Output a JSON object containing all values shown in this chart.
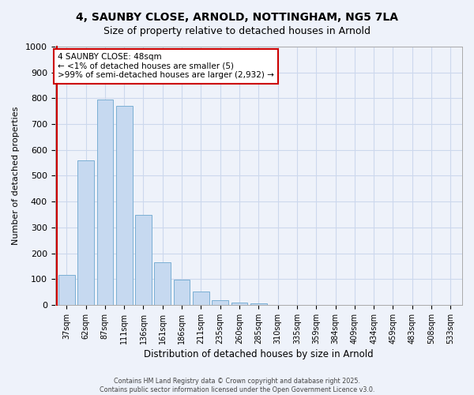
{
  "title": "4, SAUNBY CLOSE, ARNOLD, NOTTINGHAM, NG5 7LA",
  "subtitle": "Size of property relative to detached houses in Arnold",
  "xlabel": "Distribution of detached houses by size in Arnold",
  "ylabel": "Number of detached properties",
  "bar_labels": [
    "37sqm",
    "62sqm",
    "87sqm",
    "111sqm",
    "136sqm",
    "161sqm",
    "186sqm",
    "211sqm",
    "235sqm",
    "260sqm",
    "285sqm",
    "310sqm",
    "335sqm",
    "359sqm",
    "384sqm",
    "409sqm",
    "434sqm",
    "459sqm",
    "483sqm",
    "508sqm",
    "533sqm"
  ],
  "bar_values": [
    115,
    560,
    795,
    770,
    350,
    165,
    98,
    52,
    18,
    10,
    5,
    0,
    0,
    0,
    0,
    0,
    0,
    0,
    0,
    0,
    0
  ],
  "bar_color": "#c6d9f0",
  "bar_edge_color": "#7bafd4",
  "annotation_line1": "4 SAUNBY CLOSE: 48sqm",
  "annotation_line2": "← <1% of detached houses are smaller (5)",
  "annotation_line3": ">99% of semi-detached houses are larger (2,932) →",
  "ylim": [
    0,
    1000
  ],
  "yticks": [
    0,
    100,
    200,
    300,
    400,
    500,
    600,
    700,
    800,
    900,
    1000
  ],
  "grid_color": "#ccd8ed",
  "footer1": "Contains HM Land Registry data © Crown copyright and database right 2025.",
  "footer2": "Contains public sector information licensed under the Open Government Licence v3.0.",
  "bg_color": "#eef2fa",
  "plot_bg_color": "#eef2fa",
  "title_fontsize": 10,
  "subtitle_fontsize": 9
}
